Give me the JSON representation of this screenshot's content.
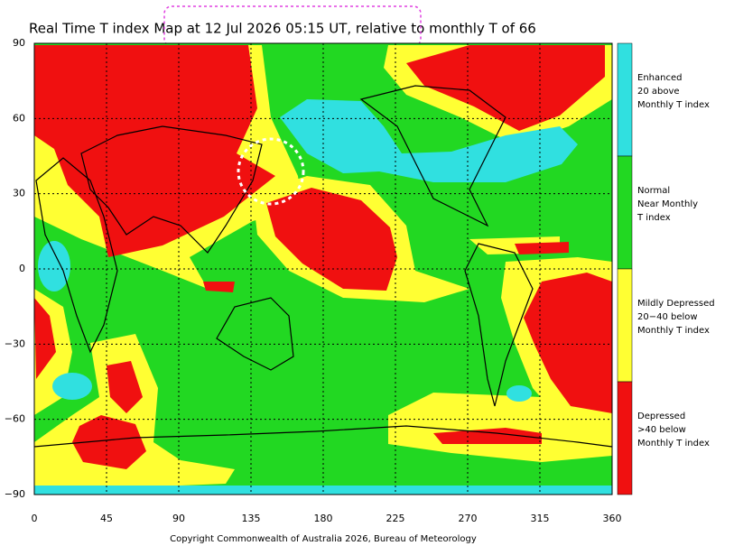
{
  "chart_data": {
    "type": "map",
    "title": "Real Time T index Map at 12 Jul 2026 05:15 UT, relative to monthly T of 66",
    "xlim": [
      0,
      360
    ],
    "ylim": [
      -90,
      90
    ],
    "xticks": [
      0,
      45,
      90,
      135,
      180,
      225,
      270,
      315,
      360
    ],
    "yticks": [
      {
        "value": -90,
        "label": "−90"
      },
      {
        "value": -60,
        "label": "−60"
      },
      {
        "value": -30,
        "label": "−30"
      },
      0,
      30,
      60,
      90
    ],
    "grid": true,
    "legend": [
      {
        "lines": [
          "Enhanced",
          "20 above",
          "Monthly T index"
        ],
        "color": "#30e0e0"
      },
      {
        "lines": [
          "Normal",
          "Near Monthly",
          "T index"
        ],
        "color": "#22d822"
      },
      {
        "lines": [
          "Mildly Depressed",
          "20−40 below",
          "Monthly T index"
        ],
        "color": "#ffff33"
      },
      {
        "lines": [
          "Depressed",
          ">40 below",
          "Monthly T index"
        ],
        "color": "#f01010"
      }
    ],
    "footer": "Copyright Commonwealth of Australia 2026, Bureau of Meteorology"
  }
}
